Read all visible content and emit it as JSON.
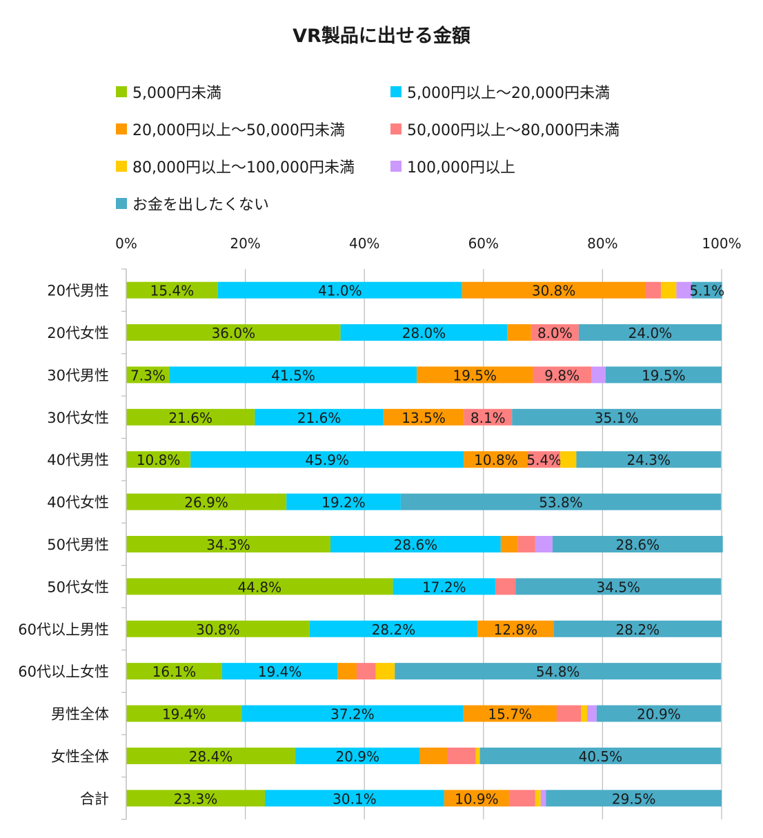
{
  "chart_data": {
    "type": "bar",
    "orientation": "horizontal",
    "stacked": true,
    "title": "VR製品に出せる金額",
    "categories": [
      "20代男性",
      "20代女性",
      "30代男性",
      "30代女性",
      "40代男性",
      "40代女性",
      "50代男性",
      "50代女性",
      "60代以上男性",
      "60代以上女性",
      "男性全体",
      "女性全体",
      "合計"
    ],
    "xlim": [
      0,
      100
    ],
    "x_ticks": [
      "0%",
      "20%",
      "40%",
      "60%",
      "80%",
      "100%"
    ],
    "x_axis_position": "top",
    "grid": true,
    "legend_position": "top",
    "series": [
      {
        "name": "5,000円未満",
        "color": "#99cc00",
        "values": [
          15.4,
          36.0,
          7.3,
          21.6,
          10.8,
          26.9,
          34.3,
          44.8,
          30.8,
          16.1,
          19.4,
          28.4,
          23.3
        ],
        "labels": [
          "15.4%",
          "36.0%",
          "7.3%",
          "21.6%",
          "10.8%",
          "26.9%",
          "34.3%",
          "44.8%",
          "30.8%",
          "16.1%",
          "19.4%",
          "28.4%",
          "23.3%"
        ]
      },
      {
        "name": "5,000円以上～20,000円未満",
        "color": "#00ccff",
        "values": [
          41.0,
          28.0,
          41.5,
          21.6,
          45.9,
          19.2,
          28.6,
          17.2,
          28.2,
          19.4,
          37.2,
          20.9,
          30.1
        ],
        "labels": [
          "41.0%",
          "28.0%",
          "41.5%",
          "21.6%",
          "45.9%",
          "19.2%",
          "28.6%",
          "17.2%",
          "28.2%",
          "19.4%",
          "37.2%",
          "20.9%",
          "30.1%"
        ]
      },
      {
        "name": "20,000円以上～50,000円未満",
        "color": "#ff9900",
        "values": [
          30.8,
          4.0,
          19.5,
          13.5,
          10.8,
          0,
          2.9,
          0,
          12.8,
          3.2,
          15.7,
          4.7,
          10.9
        ],
        "labels": [
          "30.8%",
          "",
          "19.5%",
          "13.5%",
          "10.8%",
          "",
          "",
          "",
          "12.8%",
          "",
          "15.7%",
          "",
          "10.9%"
        ]
      },
      {
        "name": "50,000円以上～80,000円未満",
        "color": "#ff8080",
        "values": [
          2.6,
          8.0,
          9.8,
          8.1,
          5.4,
          0,
          2.9,
          3.4,
          0,
          3.2,
          4.1,
          4.7,
          4.4
        ],
        "labels": [
          "",
          "8.0%",
          "9.8%",
          "8.1%",
          "5.4%",
          "",
          "",
          "",
          "",
          "",
          "",
          "",
          ""
        ]
      },
      {
        "name": "80,000円以上～100,000円未満",
        "color": "#ffcc00",
        "values": [
          2.6,
          0,
          0,
          0,
          2.7,
          0,
          0,
          0,
          0,
          3.2,
          1.0,
          0.7,
          0.9
        ],
        "labels": [
          "",
          "",
          "",
          "",
          "",
          "",
          "",
          "",
          "",
          "",
          "",
          "",
          ""
        ]
      },
      {
        "name": "100,000円以上",
        "color": "#cc99ff",
        "values": [
          2.6,
          0,
          2.4,
          0,
          0,
          0,
          2.9,
          0,
          0,
          0,
          1.6,
          0,
          0.9
        ],
        "labels": [
          "",
          "",
          "",
          "",
          "",
          "",
          "",
          "",
          "",
          "",
          "",
          "",
          ""
        ]
      },
      {
        "name": "お金を出したくない",
        "color": "#4bacc6",
        "values": [
          5.1,
          24.0,
          19.5,
          35.1,
          24.3,
          53.8,
          28.6,
          34.5,
          28.2,
          54.8,
          20.9,
          40.5,
          29.5
        ],
        "labels": [
          "5.1%",
          "24.0%",
          "19.5%",
          "35.1%",
          "24.3%",
          "53.8%",
          "28.6%",
          "34.5%",
          "28.2%",
          "54.8%",
          "20.9%",
          "40.5%",
          "29.5%"
        ]
      }
    ]
  }
}
